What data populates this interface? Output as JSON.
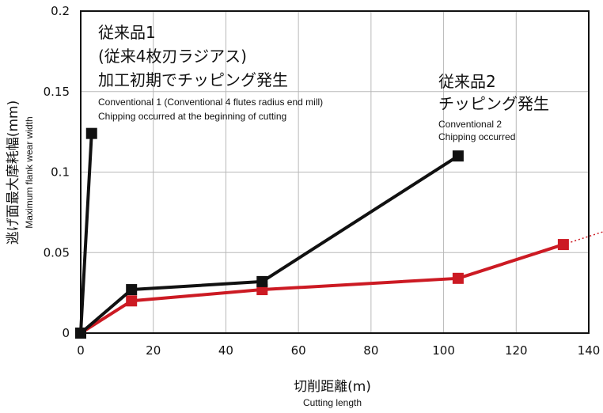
{
  "chart_data": {
    "type": "line",
    "xlabel": "切削距離(m)",
    "xlabel_en": "Cutting length",
    "ylabel": "逃げ面最大摩耗幅(mm)",
    "ylabel_en": "Maximum flank wear width",
    "xlim": [
      0,
      140
    ],
    "ylim": [
      0,
      0.2
    ],
    "x_ticks": [
      "0",
      "20",
      "40",
      "60",
      "80",
      "100",
      "120",
      "140"
    ],
    "y_ticks": [
      "0",
      "0.05",
      "0.1",
      "0.15",
      "0.2"
    ],
    "grid": true,
    "series": [
      {
        "color": "#cc1a23",
        "x": [
          0,
          14,
          50,
          104,
          133
        ],
        "y": [
          0,
          0.02,
          0.027,
          0.034,
          0.055
        ],
        "extension": "dotted"
      },
      {
        "color": "#111111",
        "x": [
          0,
          3,
          0,
          14,
          50,
          104
        ],
        "y": [
          0,
          0.124,
          0,
          0.027,
          0.032,
          0.11
        ]
      }
    ],
    "annotations": {
      "conv1": {
        "ja": [
          "従来品1",
          "(従来4枚刃ラジアス)",
          "加工初期でチッピング発生"
        ],
        "en": [
          "Conventional 1 (Conventional 4 flutes radius end mill)",
          "Chipping occurred at the beginning of cutting"
        ]
      },
      "conv2": {
        "ja": [
          "従来品2",
          "チッピング発生"
        ],
        "en": [
          "Conventional 2",
          "Chipping occurred"
        ]
      }
    }
  }
}
